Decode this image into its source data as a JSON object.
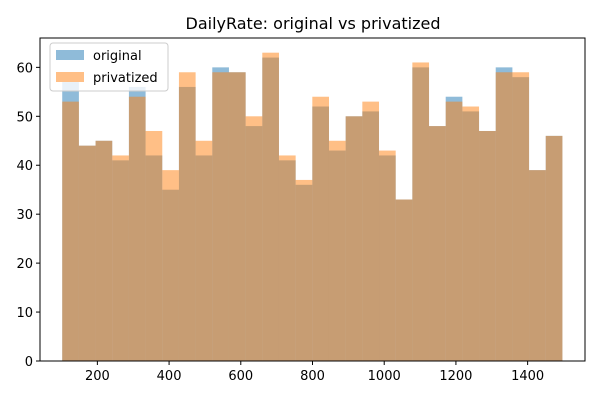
{
  "chart_data": {
    "type": "histogram",
    "title": "DailyRate: original vs privatized",
    "xlabel": "",
    "ylabel": "",
    "xlim": [
      40,
      1560
    ],
    "ylim": [
      0,
      66
    ],
    "x_ticks": [
      200,
      400,
      600,
      800,
      1000,
      1200,
      1400
    ],
    "y_ticks": [
      0,
      10,
      20,
      30,
      40,
      50,
      60
    ],
    "bin_edges": [
      102,
      148.5,
      195,
      241.5,
      288,
      334.5,
      381,
      427.5,
      474,
      520.5,
      567,
      613.5,
      660,
      706.5,
      753,
      799.5,
      846,
      892.5,
      939,
      985.5,
      1032,
      1078.5,
      1125,
      1171.5,
      1218,
      1264.5,
      1311,
      1357.5,
      1404,
      1450.5,
      1497
    ],
    "legend_position": "upper-left",
    "series": [
      {
        "name": "original",
        "color": "#1f77b4",
        "opacity": 0.5,
        "values": [
          57,
          44,
          45,
          41,
          56,
          42,
          35,
          56,
          42,
          60,
          59,
          48,
          62,
          41,
          36,
          52,
          43,
          50,
          51,
          42,
          33,
          60,
          48,
          54,
          51,
          47,
          60,
          58,
          39,
          46
        ]
      },
      {
        "name": "privatized",
        "color": "#ff7f0e",
        "opacity": 0.5,
        "values": [
          53,
          44,
          45,
          42,
          54,
          47,
          39,
          59,
          45,
          59,
          59,
          50,
          63,
          42,
          37,
          54,
          45,
          50,
          53,
          43,
          33,
          61,
          48,
          53,
          52,
          47,
          59,
          59,
          39,
          46
        ]
      }
    ]
  }
}
